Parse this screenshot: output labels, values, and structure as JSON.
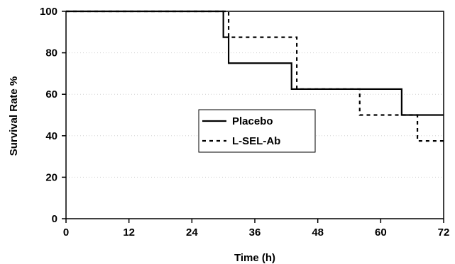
{
  "chart_data": {
    "type": "line",
    "subtype": "step",
    "title": "",
    "xlabel": "Time (h)",
    "ylabel": "Survival Rate  %",
    "xlim": [
      0,
      72
    ],
    "ylim": [
      0,
      100
    ],
    "xticks": [
      0,
      12,
      24,
      36,
      48,
      60,
      72
    ],
    "yticks": [
      0,
      20,
      40,
      60,
      80,
      100
    ],
    "grid": "horizontal dotted",
    "legend_position": "center",
    "series": [
      {
        "name": "Placebo",
        "style": "solid",
        "color": "#000000",
        "x": [
          0,
          30,
          31,
          43,
          64,
          72
        ],
        "y": [
          100,
          87.5,
          75,
          62.5,
          50,
          50
        ]
      },
      {
        "name": "L-SEL-Ab",
        "style": "dashed",
        "color": "#000000",
        "x": [
          0,
          31,
          44,
          56,
          67,
          72
        ],
        "y": [
          100,
          87.5,
          62.5,
          50,
          37.5,
          37.5
        ]
      }
    ]
  }
}
